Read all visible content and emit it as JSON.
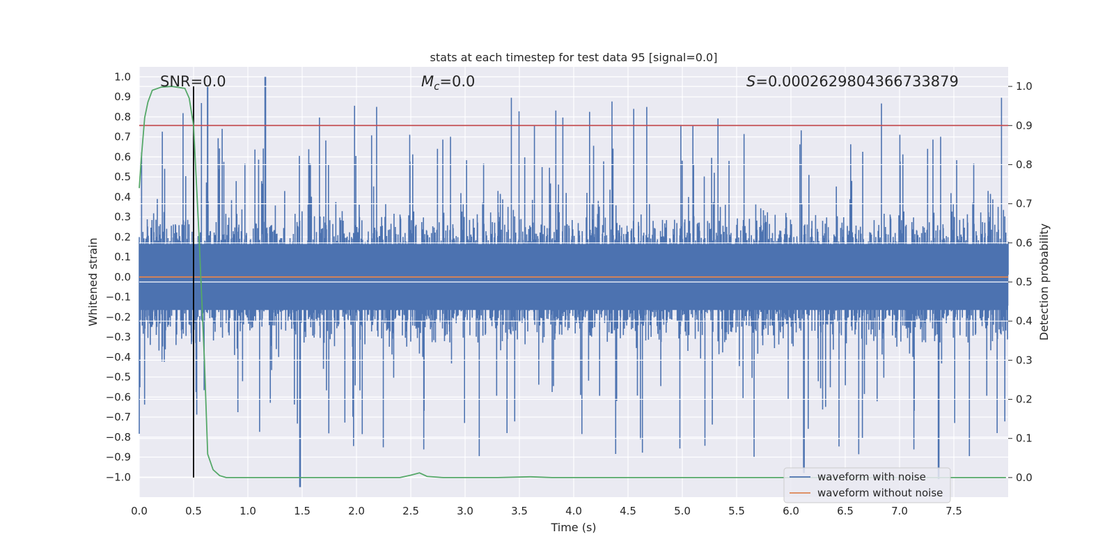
{
  "chart_data": {
    "type": "line",
    "title": "stats at each timestep for test data 95 [signal=0.0]",
    "xlabel": "Time (s)",
    "ylabel_left": "Whitened strain",
    "ylabel_right": "Detection probability",
    "xlim": [
      0.0,
      8.0
    ],
    "ylim_left": [
      -1.1,
      1.05
    ],
    "ylim_right": [
      -0.05,
      1.05
    ],
    "x_ticks": [
      0.0,
      0.5,
      1.0,
      1.5,
      2.0,
      2.5,
      3.0,
      3.5,
      4.0,
      4.5,
      5.0,
      5.5,
      6.0,
      6.5,
      7.0,
      7.5
    ],
    "x_tick_labels": [
      "0.0",
      "0.5",
      "1.0",
      "1.5",
      "2.0",
      "2.5",
      "3.0",
      "3.5",
      "4.0",
      "4.5",
      "5.0",
      "5.5",
      "6.0",
      "6.5",
      "7.0",
      "7.5"
    ],
    "y_ticks_left": [
      1.0,
      0.9,
      0.8,
      0.7,
      0.6,
      0.5,
      0.4,
      0.3,
      0.2,
      0.1,
      0.0,
      -0.1,
      -0.2,
      -0.3,
      -0.4,
      -0.5,
      -0.6,
      -0.7,
      -0.8,
      -0.9,
      -1.0
    ],
    "y_tick_labels_left": [
      "1.0",
      "0.9",
      "0.8",
      "0.7",
      "0.6",
      "0.5",
      "0.4",
      "0.3",
      "0.2",
      "0.1",
      "0.0",
      "−0.1",
      "−0.2",
      "−0.3",
      "−0.4",
      "−0.5",
      "−0.6",
      "−0.7",
      "−0.8",
      "−0.9",
      "−1.0"
    ],
    "y_ticks_right": [
      1.0,
      0.9,
      0.8,
      0.7,
      0.6,
      0.5,
      0.4,
      0.3,
      0.2,
      0.1,
      0.0
    ],
    "y_tick_labels_right": [
      "1.0",
      "0.9",
      "0.8",
      "0.7",
      "0.6",
      "0.5",
      "0.4",
      "0.3",
      "0.2",
      "0.1",
      "0.0"
    ],
    "annotations": {
      "snr": "SNR=0.0",
      "mc_symbol": "M",
      "mc_subscript": "c",
      "mc_value": "=0.0",
      "s_symbol": "S",
      "s_value": "=0.0002629804366733879"
    },
    "series": [
      {
        "name": "waveform with noise",
        "axis": "left",
        "color": "#4c72b0",
        "style": "dense noise, typical amplitude ±0.4, peaks to ±0.95, spike to -1.0 near t=1.48"
      },
      {
        "name": "waveform without noise",
        "axis": "left",
        "color": "#dd8452",
        "x": [
          0.0,
          8.0
        ],
        "y": [
          0.0,
          0.0
        ]
      },
      {
        "name": "detection probability",
        "axis": "right",
        "color": "#55a868",
        "x": [
          0.0,
          0.02,
          0.05,
          0.08,
          0.12,
          0.2,
          0.3,
          0.42,
          0.46,
          0.5,
          0.55,
          0.6,
          0.63,
          0.68,
          0.74,
          0.8,
          1.2,
          2.0,
          2.4,
          2.5,
          2.58,
          2.65,
          2.8,
          3.3,
          3.6,
          3.8,
          4.5,
          5.5,
          6.5,
          7.5,
          7.98
        ],
        "y": [
          0.74,
          0.82,
          0.92,
          0.96,
          0.99,
          0.998,
          1.0,
          0.995,
          0.97,
          0.9,
          0.62,
          0.3,
          0.06,
          0.02,
          0.005,
          0.0,
          0.0,
          0.0,
          0.0,
          0.006,
          0.012,
          0.003,
          0.0,
          0.0,
          0.002,
          0.0,
          0.0,
          0.0,
          0.0,
          0.0,
          0.0
        ]
      },
      {
        "name": "threshold",
        "axis": "right",
        "color": "#c44e52",
        "x": [
          0.0,
          8.0
        ],
        "y": [
          0.9,
          0.9
        ]
      },
      {
        "name": "trigger marker",
        "axis": "right",
        "color": "#000000",
        "x": [
          0.5,
          0.5
        ],
        "y": [
          0.0,
          1.0
        ]
      }
    ],
    "legend": {
      "location": "lower-right",
      "entries": [
        "waveform with noise",
        "waveform without noise"
      ]
    },
    "grid": true
  }
}
